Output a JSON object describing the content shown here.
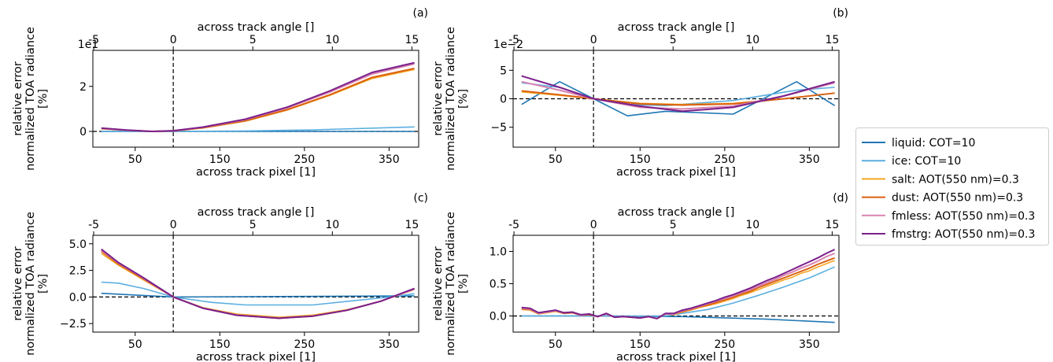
{
  "legend": {
    "entries": [
      {
        "label": "liquid: COT=10",
        "color": "#1f77b4"
      },
      {
        "label": "ice: COT=10",
        "color": "#5aaee0"
      },
      {
        "label": "salt: AOT(550 nm)=0.3",
        "color": "#f5a623"
      },
      {
        "label": "dust: AOT(550 nm)=0.3",
        "color": "#d95f0e"
      },
      {
        "label": "fmless: AOT(550 nm)=0.3",
        "color": "#d883b0"
      },
      {
        "label": "fmstrg: AOT(550 nm)=0.3",
        "color": "#7b1f8a"
      }
    ]
  },
  "chart_data": [
    {
      "panel": "(a)",
      "type": "line",
      "xlabel": "across track pixel [1]",
      "x2label": "across track angle [°]",
      "ylabel": [
        "relative error",
        "normalized TOA radiance",
        "[%]"
      ],
      "exponent": "1e1",
      "xlim": [
        0,
        385
      ],
      "ylim": [
        -0.7,
        3.6
      ],
      "xticks": [
        50,
        150,
        250,
        350
      ],
      "yticks": [
        0,
        2
      ],
      "x2ticks": [
        -5,
        0,
        5,
        10,
        15
      ],
      "x2_at_x": [
        1,
        95,
        189,
        283,
        377
      ],
      "hline": 0,
      "vline": 95,
      "series": [
        {
          "name": "liquid: COT=10",
          "x": [
            10,
            95,
            380
          ],
          "y": [
            0.0,
            0.0,
            0.0
          ]
        },
        {
          "name": "ice: COT=10",
          "x": [
            10,
            95,
            180,
            260,
            380
          ],
          "y": [
            0.0,
            0.0,
            0.02,
            0.07,
            0.2
          ]
        },
        {
          "name": "salt: AOT(550 nm)=0.3",
          "x": [
            10,
            40,
            70,
            95,
            130,
            180,
            230,
            280,
            330,
            380
          ],
          "y": [
            0.12,
            0.05,
            0.0,
            0.02,
            0.15,
            0.45,
            0.95,
            1.6,
            2.35,
            2.75
          ]
        },
        {
          "name": "dust: AOT(550 nm)=0.3",
          "x": [
            10,
            40,
            70,
            95,
            130,
            180,
            230,
            280,
            330,
            380
          ],
          "y": [
            0.12,
            0.05,
            0.0,
            0.02,
            0.16,
            0.47,
            0.97,
            1.63,
            2.4,
            2.8
          ]
        },
        {
          "name": "fmless: AOT(550 nm)=0.3",
          "x": [
            10,
            40,
            70,
            95,
            130,
            180,
            230,
            280,
            330,
            380
          ],
          "y": [
            0.14,
            0.05,
            0.0,
            0.03,
            0.18,
            0.52,
            1.05,
            1.75,
            2.55,
            3.0
          ]
        },
        {
          "name": "fmstrg: AOT(550 nm)=0.3",
          "x": [
            10,
            40,
            70,
            95,
            130,
            180,
            230,
            280,
            330,
            380
          ],
          "y": [
            0.15,
            0.06,
            0.0,
            0.03,
            0.19,
            0.54,
            1.08,
            1.8,
            2.62,
            3.05
          ]
        }
      ]
    },
    {
      "panel": "(b)",
      "type": "line",
      "xlabel": "across track pixel [1]",
      "x2label": "across track angle [°]",
      "ylabel": [
        "relative error",
        "normalized TOA radiance",
        "[%]"
      ],
      "exponent": "1e−2",
      "xlim": [
        0,
        385
      ],
      "ylim": [
        -8.5,
        8.5
      ],
      "xticks": [
        50,
        150,
        250,
        350
      ],
      "yticks": [
        -5,
        0,
        5
      ],
      "x2ticks": [
        -5,
        0,
        5,
        10,
        15
      ],
      "x2_at_x": [
        1,
        95,
        189,
        283,
        377
      ],
      "hline": 0,
      "vline": 95,
      "series": [
        {
          "name": "liquid: COT=10",
          "x": [
            10,
            55,
            95,
            135,
            180,
            260,
            335,
            380
          ],
          "y": [
            -1.0,
            3.0,
            0.0,
            -3.0,
            -2.2,
            -2.7,
            3.0,
            -1.2
          ]
        },
        {
          "name": "ice: COT=10",
          "x": [
            10,
            55,
            95,
            135,
            180,
            260,
            335,
            380
          ],
          "y": [
            2.8,
            2.0,
            0.0,
            -1.0,
            -1.2,
            -0.3,
            1.5,
            2.0
          ]
        },
        {
          "name": "salt: AOT(550 nm)=0.3",
          "x": [
            10,
            55,
            95,
            150,
            200,
            260,
            320,
            380
          ],
          "y": [
            1.2,
            0.6,
            0.0,
            -0.8,
            -1.0,
            -0.8,
            0.0,
            1.0
          ]
        },
        {
          "name": "dust: AOT(550 nm)=0.3",
          "x": [
            10,
            55,
            95,
            150,
            200,
            260,
            320,
            380
          ],
          "y": [
            1.4,
            0.7,
            0.0,
            -0.9,
            -1.1,
            -0.9,
            0.0,
            1.0
          ]
        },
        {
          "name": "fmless: AOT(550 nm)=0.3",
          "x": [
            10,
            55,
            95,
            150,
            200,
            260,
            320,
            380
          ],
          "y": [
            3.0,
            1.5,
            0.0,
            -1.5,
            -1.8,
            -1.3,
            0.5,
            2.8
          ]
        },
        {
          "name": "fmstrg: AOT(550 nm)=0.3",
          "x": [
            10,
            55,
            95,
            150,
            200,
            260,
            320,
            380
          ],
          "y": [
            4.0,
            2.0,
            0.0,
            -1.3,
            -2.2,
            -1.5,
            0.5,
            3.0
          ]
        }
      ]
    },
    {
      "panel": "(c)",
      "type": "line",
      "xlabel": "across track pixel [1]",
      "x2label": "across track angle [°]",
      "ylabel": [
        "relative error",
        "normalized TOA radiance",
        "[%]"
      ],
      "exponent": "",
      "xlim": [
        0,
        385
      ],
      "ylim": [
        -3.3,
        5.8
      ],
      "xticks": [
        50,
        150,
        250,
        350
      ],
      "yticks": [
        -2.5,
        0.0,
        2.5,
        5.0
      ],
      "ytick_labels": [
        "−2.5",
        "0.0",
        "2.5",
        "5.0"
      ],
      "x2ticks": [
        -5,
        0,
        5,
        10,
        15
      ],
      "x2_at_x": [
        1,
        95,
        189,
        283,
        377
      ],
      "hline": 0,
      "vline": 95,
      "series": [
        {
          "name": "liquid: COT=10",
          "x": [
            10,
            95,
            380
          ],
          "y": [
            0.35,
            0.0,
            0.1
          ]
        },
        {
          "name": "ice: COT=10",
          "x": [
            10,
            30,
            60,
            95,
            140,
            180,
            260,
            350,
            380
          ],
          "y": [
            1.4,
            1.3,
            0.8,
            0.0,
            -0.5,
            -0.75,
            -0.75,
            0.0,
            0.3
          ]
        },
        {
          "name": "salt: AOT(550 nm)=0.3",
          "x": [
            10,
            30,
            60,
            95,
            130,
            170,
            220,
            260,
            300,
            340,
            380
          ],
          "y": [
            4.1,
            3.0,
            1.6,
            0.0,
            -1.0,
            -1.6,
            -1.9,
            -1.7,
            -1.2,
            -0.4,
            0.7
          ]
        },
        {
          "name": "dust: AOT(550 nm)=0.3",
          "x": [
            10,
            30,
            60,
            95,
            130,
            170,
            220,
            260,
            300,
            340,
            380
          ],
          "y": [
            4.3,
            3.1,
            1.7,
            0.0,
            -1.05,
            -1.7,
            -2.0,
            -1.8,
            -1.25,
            -0.4,
            0.75
          ]
        },
        {
          "name": "fmless: AOT(550 nm)=0.3",
          "x": [
            10,
            30,
            60,
            95,
            130,
            170,
            220,
            260,
            300,
            340,
            380
          ],
          "y": [
            4.4,
            3.2,
            1.75,
            0.0,
            -1.05,
            -1.7,
            -2.0,
            -1.8,
            -1.25,
            -0.4,
            0.75
          ]
        },
        {
          "name": "fmstrg: AOT(550 nm)=0.3",
          "x": [
            10,
            30,
            60,
            95,
            130,
            170,
            220,
            260,
            300,
            340,
            380
          ],
          "y": [
            4.5,
            3.25,
            1.8,
            0.0,
            -1.05,
            -1.72,
            -2.0,
            -1.8,
            -1.25,
            -0.4,
            0.8
          ]
        }
      ]
    },
    {
      "panel": "(d)",
      "type": "line",
      "xlabel": "across track pixel [1]",
      "x2label": "across track angle [°]",
      "ylabel": [
        "relative error",
        "normalized TOA radiance",
        "[%]"
      ],
      "exponent": "",
      "xlim": [
        0,
        385
      ],
      "ylim": [
        -0.25,
        1.25
      ],
      "xticks": [
        50,
        150,
        250,
        350
      ],
      "yticks": [
        0.0,
        0.5,
        1.0
      ],
      "ytick_labels": [
        "0.0",
        "0.5",
        "1.0"
      ],
      "x2ticks": [
        -5,
        0,
        5,
        10,
        15
      ],
      "x2_at_x": [
        1,
        95,
        189,
        283,
        377
      ],
      "hline": 0,
      "vline": 95,
      "series": [
        {
          "name": "liquid: COT=10",
          "x": [
            10,
            95,
            200,
            300,
            380
          ],
          "y": [
            0.0,
            0.0,
            -0.01,
            -0.05,
            -0.1
          ]
        },
        {
          "name": "ice: COT=10",
          "x": [
            10,
            95,
            180,
            200,
            230,
            260,
            290,
            320,
            350,
            380
          ],
          "y": [
            0.0,
            0.0,
            0.0,
            0.04,
            0.1,
            0.2,
            0.32,
            0.45,
            0.59,
            0.76
          ]
        },
        {
          "name": "salt: AOT(550 nm)=0.3",
          "x": [
            10,
            20,
            30,
            40,
            50,
            60,
            70,
            80,
            90,
            100,
            110,
            120,
            130,
            140,
            150,
            160,
            170,
            180,
            190,
            200,
            210,
            220,
            230,
            240,
            250,
            260,
            270,
            280,
            290,
            300,
            310,
            320,
            330,
            340,
            350,
            360,
            370,
            380
          ],
          "y": [
            0.1,
            0.09,
            0.03,
            0.05,
            0.07,
            0.04,
            0.05,
            0.01,
            0.02,
            -0.01,
            0.03,
            -0.02,
            -0.01,
            -0.02,
            -0.03,
            -0.01,
            -0.04,
            0.03,
            0.02,
            0.06,
            0.09,
            0.13,
            0.16,
            0.19,
            0.23,
            0.27,
            0.32,
            0.36,
            0.41,
            0.46,
            0.51,
            0.56,
            0.6,
            0.66,
            0.7,
            0.76,
            0.81,
            0.86
          ]
        },
        {
          "name": "dust: AOT(550 nm)=0.3",
          "x": [
            10,
            20,
            30,
            40,
            50,
            60,
            70,
            80,
            90,
            100,
            110,
            120,
            130,
            140,
            150,
            160,
            170,
            180,
            190,
            200,
            210,
            220,
            230,
            240,
            250,
            260,
            270,
            280,
            290,
            300,
            310,
            320,
            330,
            340,
            350,
            360,
            370,
            380
          ],
          "y": [
            0.11,
            0.1,
            0.04,
            0.06,
            0.08,
            0.04,
            0.05,
            0.01,
            0.02,
            -0.01,
            0.03,
            -0.02,
            -0.01,
            -0.02,
            -0.03,
            -0.01,
            -0.04,
            0.03,
            0.03,
            0.07,
            0.1,
            0.14,
            0.17,
            0.21,
            0.25,
            0.29,
            0.34,
            0.38,
            0.44,
            0.49,
            0.54,
            0.59,
            0.64,
            0.69,
            0.74,
            0.8,
            0.85,
            0.9
          ]
        },
        {
          "name": "fmless: AOT(550 nm)=0.3",
          "x": [
            10,
            20,
            30,
            40,
            50,
            60,
            70,
            80,
            90,
            100,
            110,
            120,
            130,
            140,
            150,
            160,
            170,
            180,
            190,
            200,
            210,
            220,
            230,
            240,
            250,
            260,
            270,
            280,
            290,
            300,
            310,
            320,
            330,
            340,
            350,
            360,
            370,
            380
          ],
          "y": [
            0.12,
            0.11,
            0.04,
            0.06,
            0.08,
            0.05,
            0.06,
            0.01,
            0.03,
            -0.01,
            0.03,
            -0.02,
            -0.01,
            -0.02,
            -0.03,
            -0.01,
            -0.04,
            0.03,
            0.03,
            0.08,
            0.11,
            0.15,
            0.19,
            0.23,
            0.27,
            0.31,
            0.36,
            0.41,
            0.46,
            0.52,
            0.57,
            0.63,
            0.68,
            0.74,
            0.79,
            0.85,
            0.92,
            0.97
          ]
        },
        {
          "name": "fmstrg: AOT(550 nm)=0.3",
          "x": [
            10,
            20,
            30,
            40,
            50,
            60,
            70,
            80,
            90,
            100,
            110,
            120,
            130,
            140,
            150,
            160,
            170,
            180,
            190,
            200,
            210,
            220,
            230,
            240,
            250,
            260,
            270,
            280,
            290,
            300,
            310,
            320,
            330,
            340,
            350,
            360,
            370,
            380
          ],
          "y": [
            0.13,
            0.12,
            0.05,
            0.07,
            0.09,
            0.05,
            0.06,
            0.02,
            0.03,
            -0.01,
            0.04,
            -0.02,
            -0.01,
            -0.02,
            -0.03,
            -0.01,
            -0.04,
            0.04,
            0.04,
            0.09,
            0.12,
            0.16,
            0.2,
            0.24,
            0.29,
            0.33,
            0.38,
            0.43,
            0.49,
            0.55,
            0.6,
            0.66,
            0.72,
            0.78,
            0.84,
            0.9,
            0.97,
            1.03
          ]
        }
      ]
    }
  ]
}
